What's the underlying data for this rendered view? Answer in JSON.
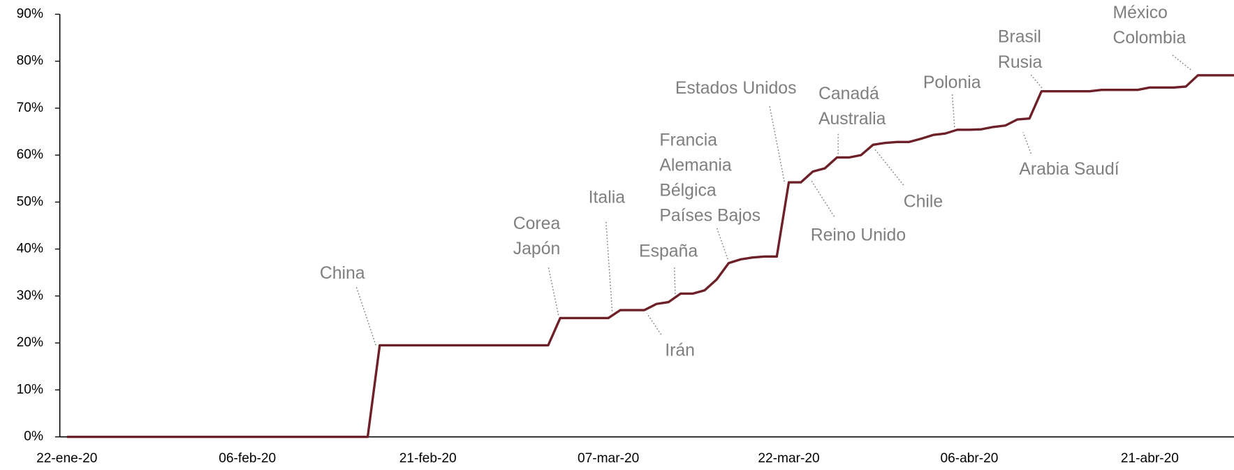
{
  "chart_data": {
    "type": "line",
    "categories": [
      "22-ene-20",
      null,
      null,
      null,
      null,
      null,
      null,
      null,
      null,
      null,
      null,
      null,
      null,
      null,
      null,
      "06-feb-20",
      null,
      null,
      null,
      null,
      null,
      null,
      null,
      null,
      null,
      null,
      null,
      null,
      null,
      null,
      "21-feb-20",
      null,
      null,
      null,
      null,
      null,
      null,
      null,
      null,
      null,
      null,
      null,
      null,
      null,
      null,
      "07-mar-20",
      null,
      null,
      null,
      null,
      null,
      null,
      null,
      null,
      null,
      null,
      null,
      null,
      null,
      null,
      "22-mar-20",
      null,
      null,
      null,
      null,
      null,
      null,
      null,
      null,
      null,
      null,
      null,
      null,
      null,
      null,
      "06-abr-20",
      null,
      null,
      null,
      null,
      null,
      null,
      null,
      null,
      null,
      null,
      null,
      null,
      null,
      null,
      "21-abr-20",
      null,
      null,
      null,
      null,
      null,
      null,
      null
    ],
    "series": [
      {
        "color": "#6d2027",
        "values": [
          0,
          0,
          0,
          0,
          0,
          0,
          0,
          0,
          0,
          0,
          0,
          0,
          0,
          0,
          0,
          0,
          0,
          0,
          0,
          0,
          0,
          0,
          0,
          0,
          0,
          0,
          19.5,
          19.5,
          19.5,
          19.5,
          19.5,
          19.5,
          19.5,
          19.5,
          19.5,
          19.5,
          19.5,
          19.5,
          19.5,
          19.5,
          19.5,
          25.3,
          25.3,
          25.3,
          25.3,
          25.3,
          27,
          27,
          27,
          28.3,
          28.7,
          30.5,
          30.5,
          31.2,
          33.5,
          37,
          37.8,
          38.2,
          38.4,
          38.4,
          54.2,
          54.2,
          56.5,
          57.2,
          59.5,
          59.5,
          60,
          62.2,
          62.6,
          62.8,
          62.8,
          63.5,
          64.3,
          64.6,
          65.4,
          65.4,
          65.5,
          66,
          66.3,
          67.6,
          67.8,
          73.6,
          73.6,
          73.6,
          73.6,
          73.6,
          73.9,
          73.9,
          73.9,
          73.9,
          74.4,
          74.4,
          74.4,
          74.6,
          77,
          77,
          77,
          77
        ]
      }
    ],
    "ylim": [
      0,
      90
    ],
    "yticks": [
      {
        "value": 0,
        "label": "0%"
      },
      {
        "value": 10,
        "label": "10%"
      },
      {
        "value": 20,
        "label": "20%"
      },
      {
        "value": 30,
        "label": "30%"
      },
      {
        "value": 40,
        "label": "40%"
      },
      {
        "value": 50,
        "label": "50%"
      },
      {
        "value": 60,
        "label": "60%"
      },
      {
        "value": 70,
        "label": "70%"
      },
      {
        "value": 80,
        "label": "80%"
      },
      {
        "value": 90,
        "label": "90%"
      }
    ],
    "annotations": [
      [
        "China"
      ],
      [
        "Corea",
        "Japón"
      ],
      [
        "Italia"
      ],
      [
        "España"
      ],
      [
        "Irán"
      ],
      [
        "Francia",
        "Alemania",
        "Bélgica",
        "Países Bajos"
      ],
      [
        "Estados Unidos"
      ],
      [
        "Reino Unido"
      ],
      [
        "Canadá",
        "Australia"
      ],
      [
        "Chile"
      ],
      [
        "Polonia"
      ],
      [
        "Arabia Saudí"
      ],
      [
        "Brasil",
        "Rusia"
      ],
      [
        "México",
        "Colombia"
      ]
    ]
  }
}
